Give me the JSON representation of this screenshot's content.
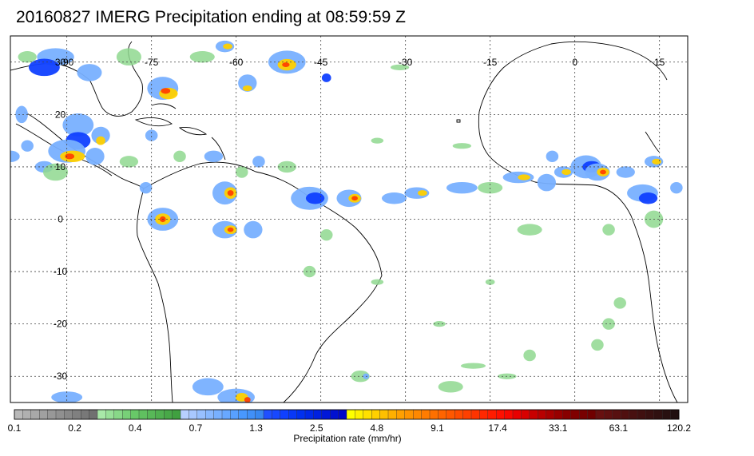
{
  "title": "20160827 IMERG Precipitation ending at 08:59:59 Z",
  "map": {
    "lon_range": [
      -100,
      20
    ],
    "lat_range": [
      -35,
      35
    ],
    "lon_labels": [
      "-90",
      "-75",
      "-60",
      "-45",
      "-30",
      "-15",
      "0",
      "15"
    ],
    "lat_labels": [
      "30",
      "20",
      "10",
      "0",
      "-10",
      "-20",
      "-30"
    ],
    "grid": true
  },
  "colorbar": {
    "title": "Precipitation rate (mm/hr)",
    "tick_labels": [
      "0.1",
      "0.2",
      "0.4",
      "0.7",
      "1.3",
      "2.5",
      "4.8",
      "9.1",
      "17.4",
      "33.1",
      "63.1",
      "120.2"
    ],
    "colors": [
      "#b8b8b8",
      "#b0b0b0",
      "#a8a8a8",
      "#a0a0a0",
      "#989898",
      "#909090",
      "#888888",
      "#808080",
      "#787878",
      "#707070",
      "#a8e8a8",
      "#98e098",
      "#88d888",
      "#78d078",
      "#68c868",
      "#60c060",
      "#58b858",
      "#50b050",
      "#48a848",
      "#40a040",
      "#b8d0ff",
      "#a8c8ff",
      "#98c0ff",
      "#88b8ff",
      "#78b0ff",
      "#68a8ff",
      "#58a0ff",
      "#4898ff",
      "#4090f8",
      "#3888f0",
      "#2050ff",
      "#1848ff",
      "#1040ff",
      "#0838f8",
      "#0030f0",
      "#0028e8",
      "#0020e0",
      "#0018d8",
      "#0010d0",
      "#0008c8",
      "#ffff00",
      "#fff000",
      "#ffe000",
      "#ffd000",
      "#ffc000",
      "#ffb000",
      "#ffa000",
      "#ff9400",
      "#ff8800",
      "#ff7c00",
      "#ff7000",
      "#ff6400",
      "#ff5800",
      "#ff4c00",
      "#ff4000",
      "#ff3400",
      "#ff2800",
      "#ff1c00",
      "#ff1000",
      "#f80800",
      "#e80000",
      "#d80000",
      "#c80000",
      "#b80000",
      "#a80000",
      "#980000",
      "#880000",
      "#800000",
      "#780000",
      "#700000",
      "#681010",
      "#601010",
      "#581010",
      "#501010",
      "#481010",
      "#401010",
      "#381010",
      "#301010",
      "#281010",
      "#201010"
    ]
  },
  "precip_colors": {
    "light": "#8fd88f",
    "moderate": "#78b0ff",
    "heavy": "#1040ff",
    "intense": "#ffd000",
    "extreme": "#ff4000"
  }
}
